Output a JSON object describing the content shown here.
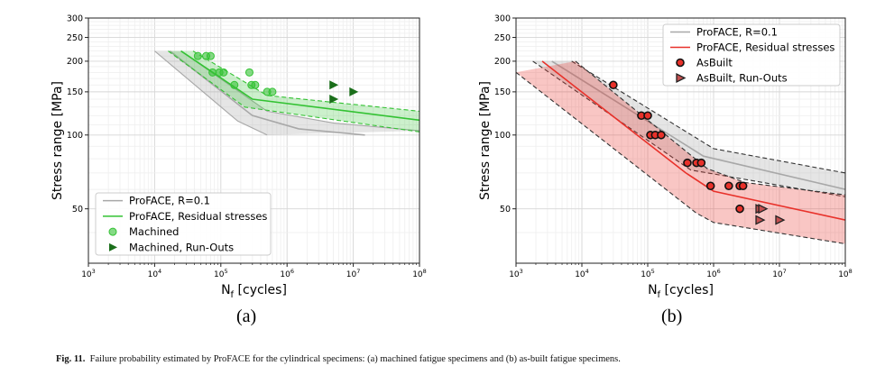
{
  "figure": {
    "caption_label": "Fig. 11.",
    "caption_text": "Failure probability estimated by ProFACE for the cylindrical specimens: (a) machined fatigue specimens and (b) as-built fatigue specimens.",
    "colors": {
      "gray": "#a8a8a8",
      "green": "#33c233",
      "red": "#e8312a",
      "dark": "#333333"
    }
  },
  "chart_data": [
    {
      "panel_label": "(a)",
      "type": "scatter",
      "xlabel": "N_f [cycles]",
      "ylabel": "Stress range [MPa]",
      "x_scale": "log",
      "y_scale": "log",
      "xlim": [
        1000,
        100000000
      ],
      "ylim": [
        30,
        300
      ],
      "x_ticks": [
        {
          "v": 1000,
          "m": "10",
          "e": "3"
        },
        {
          "v": 10000,
          "m": "10",
          "e": "4"
        },
        {
          "v": 100000,
          "m": "10",
          "e": "5"
        },
        {
          "v": 1000000,
          "m": "10",
          "e": "6"
        },
        {
          "v": 10000000,
          "m": "10",
          "e": "7"
        },
        {
          "v": 100000000,
          "m": "10",
          "e": "8"
        }
      ],
      "y_ticks": [
        50,
        100,
        150,
        200,
        250,
        300
      ],
      "grid": true,
      "legend_position": "lower-left",
      "legend": [
        "ProFACE, R=0.1",
        "ProFACE, Residual stresses",
        "Machined",
        "Machined, Run-Outs"
      ],
      "bands": [
        {
          "name": "ProFACE, R=0.1",
          "color": "#a8a8a8",
          "fill_opacity": 0.3,
          "dashed": false,
          "median": [
            [
              17000,
              220
            ],
            [
              300000,
              120
            ],
            [
              1500000,
              106
            ],
            [
              15000000,
              100
            ]
          ],
          "upper": [
            [
              25000,
              220
            ],
            [
              500000,
              125
            ],
            [
              5000000,
              112
            ],
            [
              100000000,
              104
            ]
          ],
          "lower": [
            [
              10000,
              220
            ],
            [
              180000,
              114
            ],
            [
              500000,
              100
            ],
            [
              500000,
              100
            ]
          ]
        },
        {
          "name": "ProFACE, Residual stresses",
          "color": "#33c233",
          "fill_opacity": 0.25,
          "dashed": true,
          "median": [
            [
              25000,
              220
            ],
            [
              300000,
              140
            ],
            [
              100000000,
              115
            ]
          ],
          "upper": [
            [
              38000,
              220
            ],
            [
              500000,
              145
            ],
            [
              100000000,
              125
            ]
          ],
          "lower": [
            [
              16000,
              220
            ],
            [
              230000,
              130
            ],
            [
              100000000,
              103
            ]
          ]
        }
      ],
      "series": [
        {
          "name": "Machined",
          "marker": "circle",
          "color": "#33c233",
          "points": [
            [
              45000,
              210
            ],
            [
              60000,
              210
            ],
            [
              70000,
              210
            ],
            [
              75000,
              180
            ],
            [
              95000,
              180
            ],
            [
              110000,
              180
            ],
            [
              160000,
              160
            ],
            [
              270000,
              180
            ],
            [
              290000,
              160
            ],
            [
              330000,
              160
            ],
            [
              500000,
              150
            ],
            [
              600000,
              150
            ]
          ]
        },
        {
          "name": "Machined, Run-Outs",
          "marker": "triangle-right",
          "color": "#1a6e1a",
          "points": [
            [
              5000000,
              160
            ],
            [
              5000000,
              140
            ],
            [
              10000000,
              150
            ]
          ]
        }
      ]
    },
    {
      "panel_label": "(b)",
      "type": "scatter",
      "xlabel": "N_f [cycles]",
      "ylabel": "Stress range [MPa]",
      "x_scale": "log",
      "y_scale": "log",
      "xlim": [
        1000,
        100000000
      ],
      "ylim": [
        30,
        300
      ],
      "x_ticks": [
        {
          "v": 1000,
          "m": "10",
          "e": "3"
        },
        {
          "v": 10000,
          "m": "10",
          "e": "4"
        },
        {
          "v": 100000,
          "m": "10",
          "e": "5"
        },
        {
          "v": 1000000,
          "m": "10",
          "e": "6"
        },
        {
          "v": 10000000,
          "m": "10",
          "e": "7"
        },
        {
          "v": 100000000,
          "m": "10",
          "e": "8"
        }
      ],
      "y_ticks": [
        50,
        100,
        150,
        200,
        250,
        300
      ],
      "grid": true,
      "legend_position": "top-right",
      "legend": [
        "ProFACE, R=0.1",
        "ProFACE, Residual stresses",
        "AsBuilt",
        "AsBuilt, Run-Outs"
      ],
      "bands": [
        {
          "name": "ProFACE, R=0.1",
          "color": "#a8a8a8",
          "fill_opacity": 0.3,
          "dashed": true,
          "median": [
            [
              3500,
              200
            ],
            [
              700000,
              82
            ],
            [
              100000000,
              60
            ]
          ],
          "upper": [
            [
              7000,
              200
            ],
            [
              1000000,
              88
            ],
            [
              100000000,
              70
            ]
          ],
          "lower": [
            [
              1800,
              200
            ],
            [
              450000,
              72
            ],
            [
              100000000,
              56
            ]
          ]
        },
        {
          "name": "ProFACE, Residual stresses",
          "color": "#e8312a",
          "fill_opacity": 0.28,
          "dashed": true,
          "median": [
            [
              2500,
              200
            ],
            [
              380000,
              70
            ],
            [
              1000000,
              59
            ],
            [
              100000000,
              45
            ]
          ],
          "upper": [
            [
              8000,
              200
            ],
            [
              800000,
              73
            ],
            [
              3000000,
              64
            ],
            [
              100000000,
              57
            ]
          ],
          "lower": [
            [
              1000,
              180
            ],
            [
              550000,
              48
            ],
            [
              1000000,
              44
            ],
            [
              100000000,
              36
            ]
          ]
        }
      ],
      "series": [
        {
          "name": "AsBuilt",
          "marker": "circle",
          "color": "#e8312a",
          "points": [
            [
              30000,
              160
            ],
            [
              80000,
              120
            ],
            [
              100000,
              120
            ],
            [
              110000,
              100
            ],
            [
              130000,
              100
            ],
            [
              160000,
              100
            ],
            [
              400000,
              77
            ],
            [
              550000,
              77
            ],
            [
              650000,
              77
            ],
            [
              900000,
              62
            ],
            [
              1700000,
              62
            ],
            [
              2500000,
              62
            ],
            [
              2800000,
              62
            ],
            [
              2500000,
              50
            ]
          ]
        },
        {
          "name": "AsBuilt, Run-Outs",
          "marker": "triangle-right",
          "color": "#e8312a",
          "points": [
            [
              5000000,
              50
            ],
            [
              5500000,
              50
            ],
            [
              5000000,
              45
            ],
            [
              10000000,
              45
            ]
          ]
        }
      ]
    }
  ]
}
